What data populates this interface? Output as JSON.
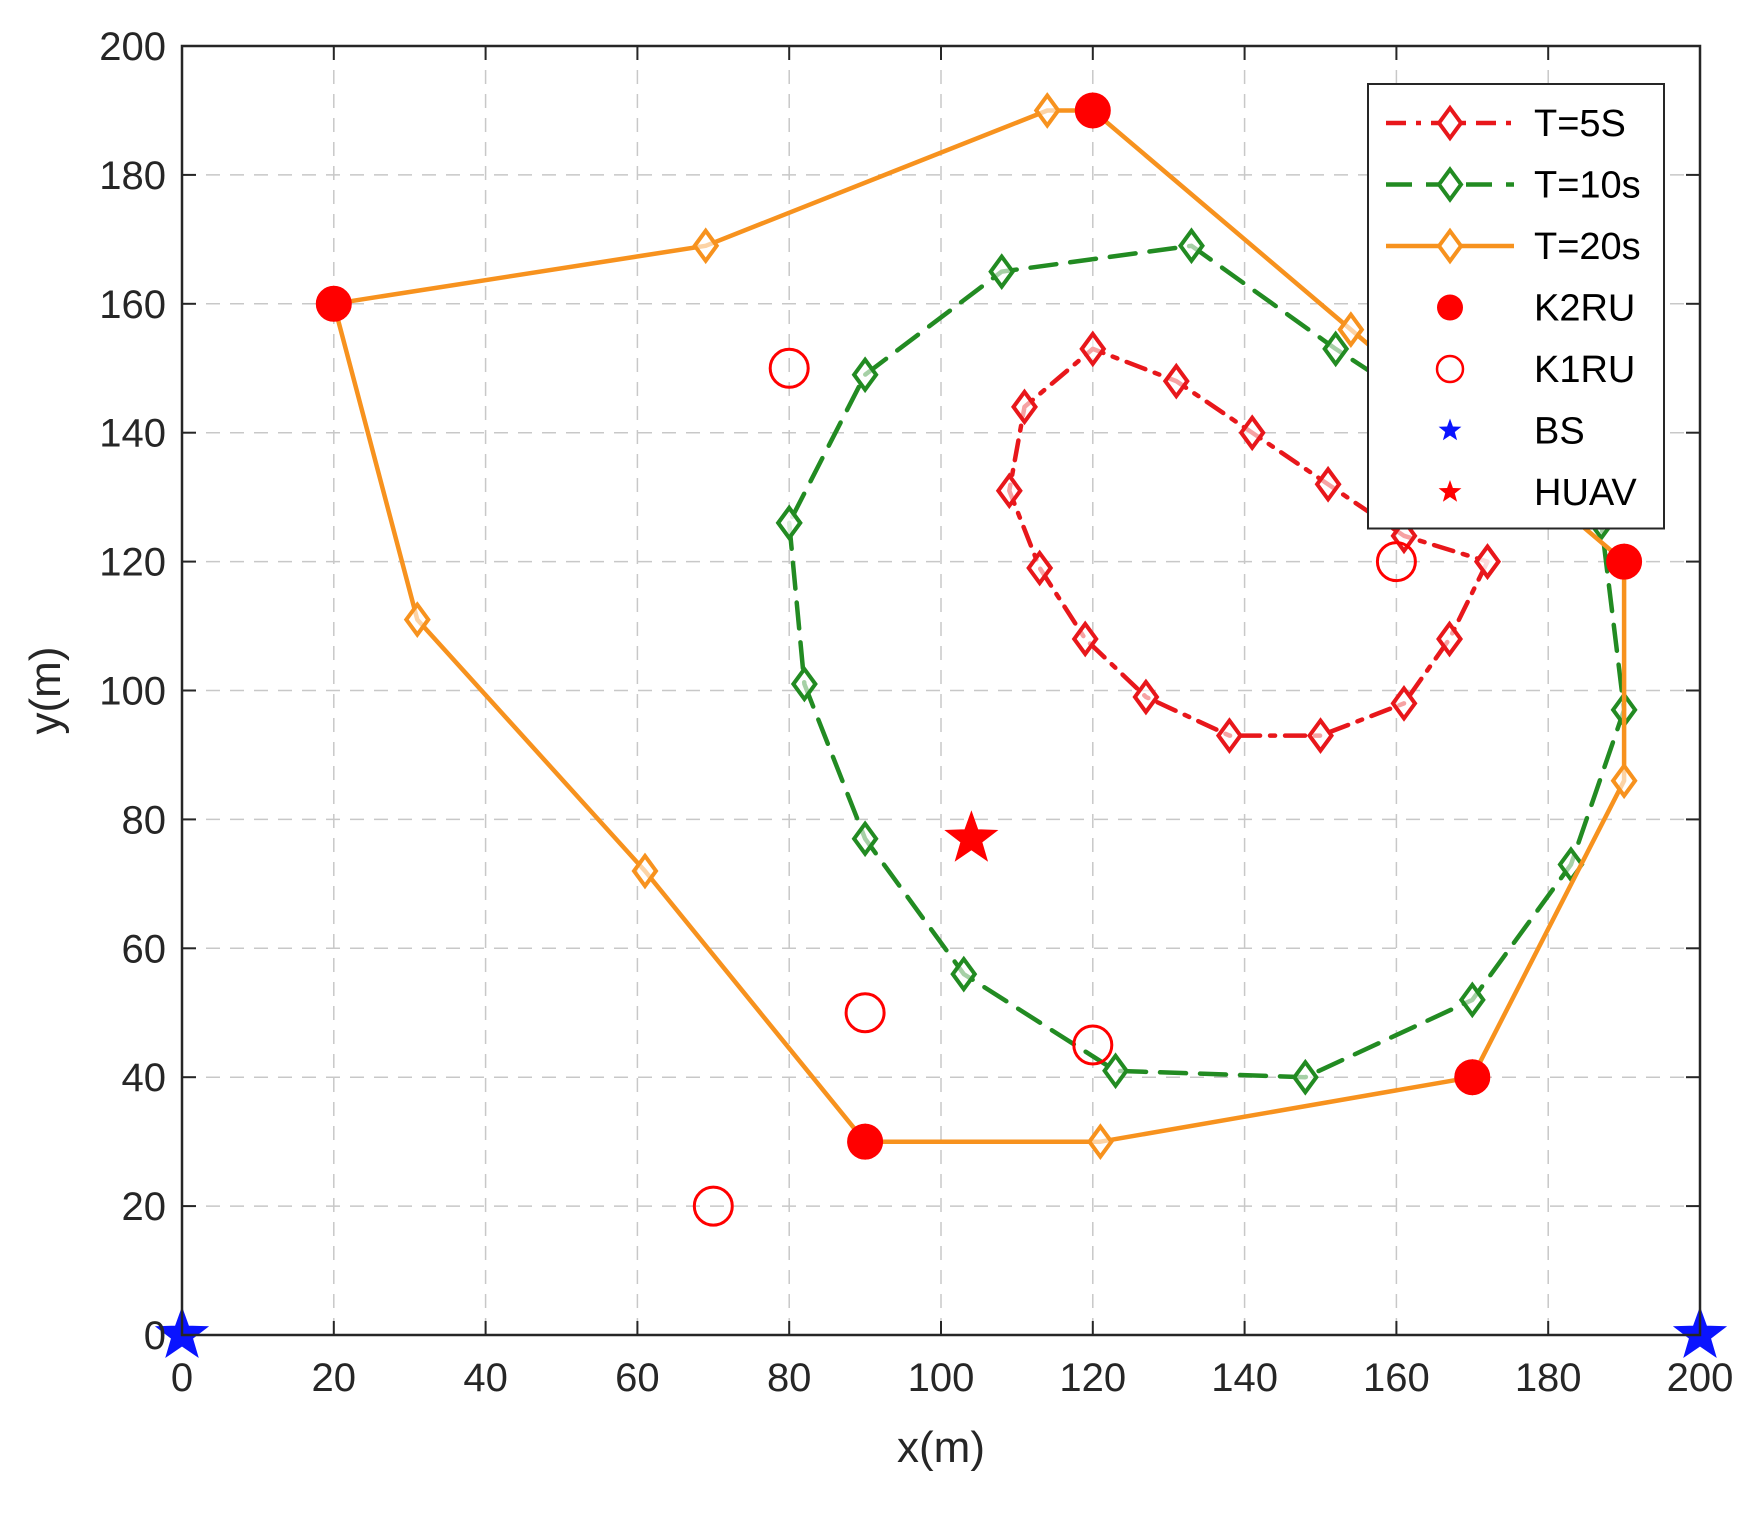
{
  "chart_data": {
    "type": "line",
    "title": "",
    "xlabel": "x(m)",
    "ylabel": "y(m)",
    "xlim": [
      0,
      200
    ],
    "ylim": [
      0,
      200
    ],
    "grid": true,
    "legend_position": "top-right",
    "xticks": [
      0,
      20,
      40,
      60,
      80,
      100,
      120,
      140,
      160,
      180,
      200
    ],
    "yticks": [
      0,
      20,
      40,
      60,
      80,
      100,
      120,
      140,
      160,
      180,
      200
    ],
    "series": [
      {
        "name": "T=5S",
        "style": "dash-dot",
        "marker": "diamond",
        "color": "#e8171b",
        "points": [
          [
            172,
            120
          ],
          [
            167,
            108
          ],
          [
            161,
            98
          ],
          [
            150,
            93
          ],
          [
            138,
            93
          ],
          [
            127,
            99
          ],
          [
            119,
            108
          ],
          [
            113,
            119
          ],
          [
            109,
            131
          ],
          [
            111,
            144
          ],
          [
            120,
            153
          ],
          [
            131,
            148
          ],
          [
            141,
            140
          ],
          [
            151,
            132
          ],
          [
            161,
            124
          ],
          [
            172,
            120
          ]
        ]
      },
      {
        "name": "T=10s",
        "style": "dashed",
        "marker": "diamond",
        "color": "#228b22",
        "points": [
          [
            80,
            126
          ],
          [
            82,
            101
          ],
          [
            90,
            77
          ],
          [
            103,
            56
          ],
          [
            123,
            41
          ],
          [
            148,
            40
          ],
          [
            170,
            52
          ],
          [
            183,
            73
          ],
          [
            190,
            97
          ],
          [
            187,
            126
          ],
          [
            152,
            153
          ],
          [
            133,
            169
          ],
          [
            108,
            165
          ],
          [
            90,
            149
          ],
          [
            80,
            126
          ]
        ]
      },
      {
        "name": "T=20s",
        "style": "solid",
        "marker": "diamond",
        "color": "#f7921e",
        "points": [
          [
            120,
            190
          ],
          [
            114,
            190
          ],
          [
            69,
            169
          ],
          [
            20,
            160
          ],
          [
            31,
            111
          ],
          [
            61,
            72
          ],
          [
            90,
            30
          ],
          [
            121,
            30
          ],
          [
            170,
            40
          ],
          [
            190,
            86
          ],
          [
            190,
            120
          ],
          [
            154,
            156
          ],
          [
            120,
            190
          ]
        ]
      }
    ],
    "markers": [
      {
        "name": "K2RU",
        "symbol": "filled-circle",
        "color": "#ff0000",
        "points": [
          [
            120,
            190
          ],
          [
            20,
            160
          ],
          [
            190,
            120
          ],
          [
            170,
            40
          ],
          [
            90,
            30
          ]
        ]
      },
      {
        "name": "K1RU",
        "symbol": "open-circle",
        "color": "#ff0000",
        "points": [
          [
            80,
            150
          ],
          [
            160,
            120
          ],
          [
            90,
            50
          ],
          [
            120,
            45
          ],
          [
            70,
            20
          ]
        ]
      },
      {
        "name": "BS",
        "symbol": "star",
        "color": "#0a14ff",
        "points": [
          [
            0,
            0
          ],
          [
            200,
            0
          ]
        ]
      },
      {
        "name": "HUAV",
        "symbol": "star",
        "color": "#ff0000",
        "points": [
          [
            104,
            77
          ]
        ]
      }
    ]
  }
}
